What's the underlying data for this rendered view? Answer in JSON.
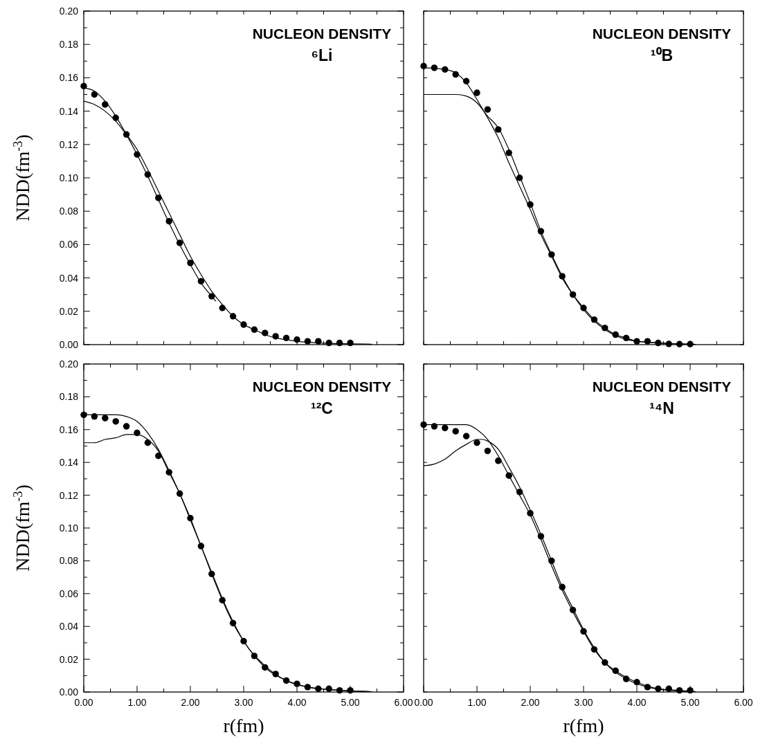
{
  "chart_data": [
    {
      "type": "line",
      "title": "NUCLEON DENSITY",
      "subtitle": "⁶Li",
      "ylabel": "NDD(fm$^{-3}$)",
      "xlim": [
        0,
        6
      ],
      "ylim": [
        0,
        0.2
      ],
      "tick_labels": "y",
      "xticks": [
        {
          "value": 0,
          "label": null
        },
        {
          "value": 0.5,
          "label": null
        },
        {
          "value": 1,
          "label": null
        },
        {
          "value": 1.5,
          "label": null
        },
        {
          "value": 2,
          "label": null
        },
        {
          "value": 2.5,
          "label": null
        },
        {
          "value": 3,
          "label": null
        },
        {
          "value": 3.5,
          "label": null
        },
        {
          "value": 4,
          "label": null
        },
        {
          "value": 4.5,
          "label": null
        },
        {
          "value": 5,
          "label": null
        },
        {
          "value": 5.5,
          "label": null
        },
        {
          "value": 6,
          "label": null
        }
      ],
      "yticks": [
        {
          "value": 0,
          "label": "0.00"
        },
        {
          "value": 0.01,
          "label": null
        },
        {
          "value": 0.02,
          "label": "0.02"
        },
        {
          "value": 0.03,
          "label": null
        },
        {
          "value": 0.04,
          "label": "0.04"
        },
        {
          "value": 0.05,
          "label": null
        },
        {
          "value": 0.06,
          "label": "0.06"
        },
        {
          "value": 0.07,
          "label": null
        },
        {
          "value": 0.08,
          "label": "0.08"
        },
        {
          "value": 0.09,
          "label": null
        },
        {
          "value": 0.1,
          "label": "0.10"
        },
        {
          "value": 0.11,
          "label": null
        },
        {
          "value": 0.12,
          "label": "0.12"
        },
        {
          "value": 0.13,
          "label": null
        },
        {
          "value": 0.14,
          "label": "0.14"
        },
        {
          "value": 0.15,
          "label": null
        },
        {
          "value": 0.16,
          "label": "0.16"
        },
        {
          "value": 0.17,
          "label": null
        },
        {
          "value": 0.18,
          "label": "0.18"
        },
        {
          "value": 0.19,
          "label": null
        },
        {
          "value": 0.2,
          "label": "0.20"
        }
      ],
      "series": [
        {
          "type": "scatter",
          "marker": "circle",
          "color": "#000000",
          "x": [
            0,
            0.2,
            0.4,
            0.6,
            0.8,
            1,
            1.2,
            1.4,
            1.6,
            1.8,
            2,
            2.2,
            2.4,
            2.6,
            2.8,
            3,
            3.2,
            3.4,
            3.6,
            3.8,
            4,
            4.2,
            4.4,
            4.6,
            4.8,
            5
          ],
          "values": [
            0.155,
            0.15,
            0.144,
            0.136,
            0.126,
            0.114,
            0.102,
            0.088,
            0.074,
            0.061,
            0.049,
            0.038,
            0.029,
            0.022,
            0.017,
            0.012,
            0.009,
            0.007,
            0.005,
            0.004,
            0.003,
            0.002,
            0.002,
            0.001,
            0.001,
            0.001
          ]
        },
        {
          "type": "line",
          "line_style": "solid",
          "color": "#000000",
          "x": [
            0,
            0.2,
            0.4,
            0.6,
            0.8,
            1,
            1.2,
            1.4,
            1.6,
            1.8,
            2,
            2.2,
            2.4,
            2.48
          ],
          "values": [
            0.154,
            0.152,
            0.146,
            0.137,
            0.126,
            0.114,
            0.101,
            0.087,
            0.073,
            0.06,
            0.048,
            0.037,
            0.029,
            0.026
          ]
        },
        {
          "type": "line",
          "line_style": "solid",
          "color": "#000000",
          "x": [
            0,
            0.2,
            0.4,
            0.6,
            0.8,
            1,
            1.2,
            1.4,
            1.6,
            1.8,
            2,
            2.2,
            2.4,
            2.6,
            2.8,
            3,
            3.2,
            3.4,
            3.6,
            3.8,
            4,
            4.4,
            5,
            5.4
          ],
          "values": [
            0.146,
            0.144,
            0.14,
            0.134,
            0.126,
            0.117,
            0.105,
            0.092,
            0.079,
            0.066,
            0.053,
            0.042,
            0.032,
            0.024,
            0.017,
            0.012,
            0.009,
            0.006,
            0.004,
            0.003,
            0.002,
            0.001,
            0.0005,
            0.0003
          ]
        }
      ]
    },
    {
      "type": "line",
      "title": "NUCLEON DENSITY",
      "subtitle": "¹⁰B",
      "xlim": [
        0,
        6
      ],
      "ylim": [
        0,
        0.2
      ],
      "tick_labels": false,
      "xticks": [
        {
          "value": 0,
          "label": null
        },
        {
          "value": 0.5,
          "label": null
        },
        {
          "value": 1,
          "label": null
        },
        {
          "value": 1.5,
          "label": null
        },
        {
          "value": 2,
          "label": null
        },
        {
          "value": 2.5,
          "label": null
        },
        {
          "value": 3,
          "label": null
        },
        {
          "value": 3.5,
          "label": null
        },
        {
          "value": 4,
          "label": null
        },
        {
          "value": 4.5,
          "label": null
        },
        {
          "value": 5,
          "label": null
        },
        {
          "value": 5.5,
          "label": null
        },
        {
          "value": 6,
          "label": null
        }
      ],
      "yticks": [
        {
          "value": 0,
          "label": null
        },
        {
          "value": 0.02,
          "label": null
        },
        {
          "value": 0.04,
          "label": null
        },
        {
          "value": 0.06,
          "label": null
        },
        {
          "value": 0.08,
          "label": null
        },
        {
          "value": 0.1,
          "label": null
        },
        {
          "value": 0.12,
          "label": null
        },
        {
          "value": 0.14,
          "label": null
        },
        {
          "value": 0.16,
          "label": null
        },
        {
          "value": 0.18,
          "label": null
        },
        {
          "value": 0.2,
          "label": null
        }
      ],
      "series": [
        {
          "type": "scatter",
          "marker": "circle",
          "color": "#000000",
          "x": [
            0,
            0.2,
            0.4,
            0.6,
            0.8,
            1,
            1.2,
            1.4,
            1.6,
            1.8,
            2,
            2.2,
            2.4,
            2.6,
            2.8,
            3,
            3.2,
            3.4,
            3.6,
            3.8,
            4,
            4.2,
            4.4,
            4.6,
            4.8,
            5
          ],
          "values": [
            0.167,
            0.166,
            0.165,
            0.162,
            0.158,
            0.151,
            0.141,
            0.129,
            0.115,
            0.1,
            0.084,
            0.068,
            0.054,
            0.041,
            0.03,
            0.022,
            0.015,
            0.01,
            0.006,
            0.004,
            0.002,
            0.002,
            0.001,
            0.0004,
            0.0003,
            0.0003
          ]
        },
        {
          "type": "line",
          "line_style": "solid",
          "color": "#000000",
          "x": [
            0,
            0.4,
            0.6,
            0.8,
            1,
            1.2,
            1.4,
            1.6,
            1.8,
            2,
            2.2,
            2.4,
            2.6,
            2.8,
            3,
            3.2,
            3.4,
            3.6,
            3.8,
            4,
            4.4,
            5,
            5.1
          ],
          "values": [
            0.166,
            0.165,
            0.163,
            0.157,
            0.147,
            0.136,
            0.124,
            0.109,
            0.095,
            0.081,
            0.066,
            0.053,
            0.04,
            0.03,
            0.022,
            0.015,
            0.01,
            0.006,
            0.004,
            0.002,
            0.001,
            0.0003,
            0.0002
          ]
        },
        {
          "type": "line",
          "line_style": "solid",
          "color": "#000000",
          "x": [
            0,
            0.4,
            0.6,
            0.8,
            1,
            1.2,
            1.4,
            1.6,
            1.8,
            2,
            2.2,
            2.4,
            2.6,
            2.8,
            3,
            3.4,
            4,
            5.1
          ],
          "values": [
            0.15,
            0.15,
            0.15,
            0.149,
            0.145,
            0.137,
            0.13,
            0.117,
            0.101,
            0.085,
            0.068,
            0.054,
            0.041,
            0.03,
            0.021,
            0.009,
            0.002,
            0.0001
          ]
        }
      ]
    },
    {
      "type": "line",
      "title": "NUCLEON DENSITY",
      "subtitle": "¹²C",
      "xlabel": "r(fm)",
      "ylabel": "NDD(fm$^{-3}$)",
      "xlim": [
        0,
        6
      ],
      "ylim": [
        0,
        0.2
      ],
      "xticks": [
        {
          "value": 0,
          "label": "0.00"
        },
        {
          "value": 0.5,
          "label": null
        },
        {
          "value": 1,
          "label": "1.00"
        },
        {
          "value": 1.5,
          "label": null
        },
        {
          "value": 2,
          "label": "2.00"
        },
        {
          "value": 2.5,
          "label": null
        },
        {
          "value": 3,
          "label": "3.00"
        },
        {
          "value": 3.5,
          "label": null
        },
        {
          "value": 4,
          "label": "4.00"
        },
        {
          "value": 4.5,
          "label": null
        },
        {
          "value": 5,
          "label": "5.00"
        },
        {
          "value": 5.5,
          "label": null
        },
        {
          "value": 6,
          "label": "6.00"
        }
      ],
      "yticks": [
        {
          "value": 0,
          "label": "0.00"
        },
        {
          "value": 0.01,
          "label": null
        },
        {
          "value": 0.02,
          "label": "0.02"
        },
        {
          "value": 0.03,
          "label": null
        },
        {
          "value": 0.04,
          "label": "0.04"
        },
        {
          "value": 0.05,
          "label": null
        },
        {
          "value": 0.06,
          "label": "0.06"
        },
        {
          "value": 0.07,
          "label": null
        },
        {
          "value": 0.08,
          "label": "0.08"
        },
        {
          "value": 0.09,
          "label": null
        },
        {
          "value": 0.1,
          "label": "0.10"
        },
        {
          "value": 0.11,
          "label": null
        },
        {
          "value": 0.12,
          "label": "0.12"
        },
        {
          "value": 0.13,
          "label": null
        },
        {
          "value": 0.14,
          "label": "0.14"
        },
        {
          "value": 0.15,
          "label": null
        },
        {
          "value": 0.16,
          "label": "0.16"
        },
        {
          "value": 0.17,
          "label": null
        },
        {
          "value": 0.18,
          "label": "0.18"
        },
        {
          "value": 0.19,
          "label": null
        },
        {
          "value": 0.2,
          "label": "0.20"
        }
      ],
      "series": [
        {
          "type": "scatter",
          "marker": "circle",
          "color": "#000000",
          "x": [
            0,
            0.2,
            0.4,
            0.6,
            0.8,
            1,
            1.2,
            1.4,
            1.6,
            1.8,
            2,
            2.2,
            2.4,
            2.6,
            2.8,
            3,
            3.2,
            3.4,
            3.6,
            3.8,
            4,
            4.2,
            4.4,
            4.6,
            4.8,
            5
          ],
          "values": [
            0.169,
            0.168,
            0.167,
            0.165,
            0.162,
            0.158,
            0.152,
            0.144,
            0.134,
            0.121,
            0.106,
            0.089,
            0.072,
            0.056,
            0.042,
            0.031,
            0.022,
            0.015,
            0.011,
            0.007,
            0.005,
            0.003,
            0.002,
            0.002,
            0.001,
            0.001
          ]
        },
        {
          "type": "line",
          "line_style": "solid",
          "color": "#000000",
          "x": [
            0,
            0.6,
            0.8,
            1,
            1.2,
            1.4,
            1.6,
            1.8,
            2,
            2.2,
            2.4,
            2.6,
            2.8,
            3,
            3.4,
            3.8,
            4.2,
            4.6,
            5,
            5.4
          ],
          "values": [
            0.169,
            0.169,
            0.168,
            0.165,
            0.158,
            0.148,
            0.135,
            0.121,
            0.106,
            0.089,
            0.073,
            0.057,
            0.043,
            0.031,
            0.016,
            0.007,
            0.003,
            0.0015,
            0.0007,
            0.0002
          ]
        },
        {
          "type": "line",
          "line_style": "solid",
          "color": "#000000",
          "x": [
            0,
            0.2,
            0.4,
            0.6,
            0.8,
            1,
            1.2,
            1.4,
            1.6,
            1.8,
            2,
            2.2,
            2.4,
            2.6,
            2.8,
            3,
            3.4,
            3.8,
            4.2,
            4.6,
            5,
            5.4
          ],
          "values": [
            0.152,
            0.152,
            0.154,
            0.155,
            0.157,
            0.157,
            0.154,
            0.147,
            0.134,
            0.121,
            0.105,
            0.089,
            0.072,
            0.056,
            0.042,
            0.031,
            0.015,
            0.007,
            0.003,
            0.0015,
            0.0007,
            0.0002
          ]
        }
      ]
    },
    {
      "type": "line",
      "title": "NUCLEON DENSITY",
      "subtitle": "¹⁴N",
      "xlabel": "r(fm)",
      "xlim": [
        0,
        6
      ],
      "ylim": [
        0,
        0.2
      ],
      "tick_labels": "x",
      "xticks": [
        {
          "value": 0,
          "label": "0.00"
        },
        {
          "value": 0.5,
          "label": null
        },
        {
          "value": 1,
          "label": "1.00"
        },
        {
          "value": 1.5,
          "label": null
        },
        {
          "value": 2,
          "label": "2.00"
        },
        {
          "value": 2.5,
          "label": null
        },
        {
          "value": 3,
          "label": "3.00"
        },
        {
          "value": 3.5,
          "label": null
        },
        {
          "value": 4,
          "label": "4.00"
        },
        {
          "value": 4.5,
          "label": null
        },
        {
          "value": 5,
          "label": "5.00"
        },
        {
          "value": 5.5,
          "label": null
        },
        {
          "value": 6,
          "label": "6.00"
        }
      ],
      "yticks": [
        {
          "value": 0,
          "label": null
        },
        {
          "value": 0.02,
          "label": null
        },
        {
          "value": 0.04,
          "label": null
        },
        {
          "value": 0.06,
          "label": null
        },
        {
          "value": 0.08,
          "label": null
        },
        {
          "value": 0.1,
          "label": null
        },
        {
          "value": 0.12,
          "label": null
        },
        {
          "value": 0.14,
          "label": null
        },
        {
          "value": 0.16,
          "label": null
        },
        {
          "value": 0.18,
          "label": null
        },
        {
          "value": 0.2,
          "label": null
        }
      ],
      "series": [
        {
          "type": "scatter",
          "marker": "circle",
          "color": "#000000",
          "x": [
            0,
            0.2,
            0.4,
            0.6,
            0.8,
            1,
            1.2,
            1.4,
            1.6,
            1.8,
            2,
            2.2,
            2.4,
            2.6,
            2.8,
            3,
            3.2,
            3.4,
            3.6,
            3.8,
            4,
            4.2,
            4.4,
            4.6,
            4.8,
            5
          ],
          "values": [
            0.163,
            0.162,
            0.161,
            0.159,
            0.156,
            0.152,
            0.147,
            0.141,
            0.132,
            0.122,
            0.109,
            0.095,
            0.08,
            0.064,
            0.05,
            0.037,
            0.026,
            0.018,
            0.013,
            0.008,
            0.006,
            0.003,
            0.002,
            0.002,
            0.001,
            0.001
          ]
        },
        {
          "type": "line",
          "line_style": "solid",
          "color": "#000000",
          "x": [
            0,
            0.4,
            0.6,
            0.8,
            1,
            1.2,
            1.4,
            1.6,
            1.8,
            2,
            2.2,
            2.4,
            2.6,
            2.8,
            3,
            3.2,
            3.4,
            3.6,
            3.8,
            4,
            4.4,
            4.8,
            5.1
          ],
          "values": [
            0.163,
            0.163,
            0.163,
            0.163,
            0.16,
            0.154,
            0.144,
            0.132,
            0.12,
            0.108,
            0.093,
            0.077,
            0.062,
            0.049,
            0.037,
            0.026,
            0.018,
            0.013,
            0.009,
            0.006,
            0.002,
            0.001,
            0.0003
          ]
        },
        {
          "type": "line",
          "line_style": "solid",
          "color": "#000000",
          "x": [
            0,
            0.2,
            0.4,
            0.6,
            0.8,
            1,
            1.1,
            1.2,
            1.4,
            1.6,
            1.8,
            2,
            2.2,
            2.4,
            2.6,
            2.8,
            3,
            3.2,
            3.4,
            3.8,
            4.2,
            4.6,
            5.1
          ],
          "values": [
            0.138,
            0.139,
            0.142,
            0.147,
            0.151,
            0.154,
            0.154,
            0.153,
            0.148,
            0.137,
            0.125,
            0.111,
            0.096,
            0.08,
            0.064,
            0.051,
            0.038,
            0.027,
            0.018,
            0.008,
            0.003,
            0.001,
            0.0002
          ]
        }
      ]
    }
  ]
}
